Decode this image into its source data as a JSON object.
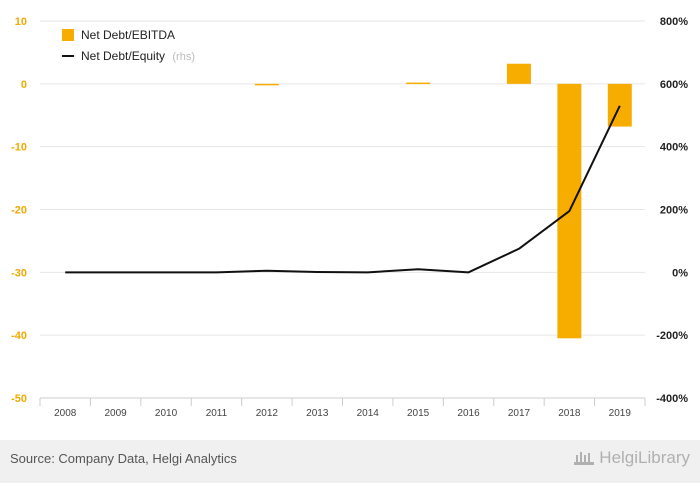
{
  "chart_data": {
    "type": "bar",
    "categories": [
      "2008",
      "2009",
      "2010",
      "2011",
      "2012",
      "2013",
      "2014",
      "2015",
      "2016",
      "2017",
      "2018",
      "2019"
    ],
    "series": [
      {
        "name": "Net Debt/EBITDA",
        "type": "bar",
        "axis": "left",
        "color": "#f7ad00",
        "values": [
          0,
          0,
          0,
          0,
          -0.1,
          0,
          0,
          0.2,
          0,
          3.2,
          -40.5,
          -6.8
        ]
      },
      {
        "name": "Net Debt/Equity",
        "type": "line",
        "axis": "right",
        "color": "#111111",
        "values": [
          0,
          0,
          0,
          0,
          5,
          1,
          0,
          10,
          0,
          75,
          195,
          530
        ]
      }
    ],
    "legend": {
      "items": [
        {
          "label": "Net Debt/EBITDA",
          "suffix": ""
        },
        {
          "label": "Net Debt/Equity",
          "suffix": "(rhs)"
        }
      ],
      "position": "top-left"
    },
    "y_left": {
      "ylim": [
        -50,
        10
      ],
      "ticks": [
        10,
        0,
        -10,
        -20,
        -30,
        -40,
        -50
      ],
      "tick_labels": [
        "10",
        "0",
        "-10",
        "-20",
        "-30",
        "-40",
        "-50"
      ]
    },
    "y_right": {
      "ylim": [
        -400,
        800
      ],
      "ticks": [
        800,
        600,
        400,
        200,
        0,
        -200,
        -400
      ],
      "tick_labels": [
        "800%",
        "600%",
        "400%",
        "200%",
        "0%",
        "-200%",
        "-400%"
      ]
    },
    "grid": true
  },
  "footer": {
    "source": "Source: Company Data, Helgi Analytics",
    "brand": "HelgiLibrary"
  },
  "colors": {
    "accent": "#f7ad00",
    "line": "#111111",
    "grid": "#e6e6e6",
    "footer_bg": "#f0f0f0"
  }
}
